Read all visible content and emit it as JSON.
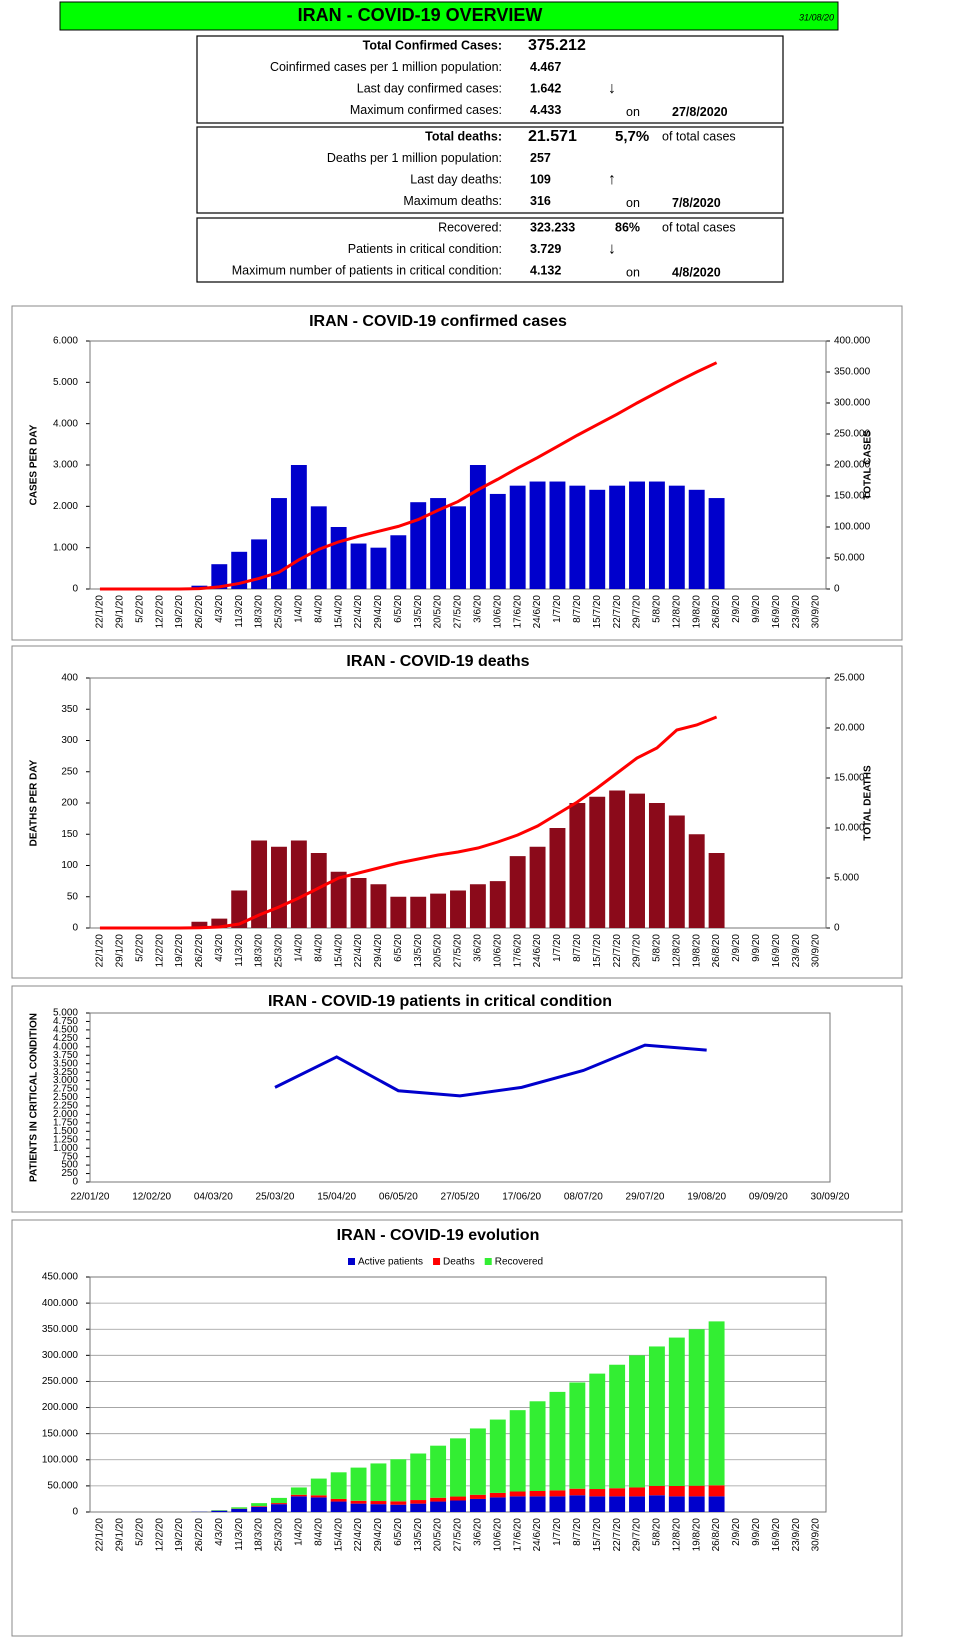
{
  "overview": {
    "title": "IRAN - COVID-19 OVERVIEW",
    "date": "31/08/20",
    "sections": [
      {
        "color": "#0000cc",
        "rows": [
          {
            "label": "Total Confirmed Cases:",
            "value": "375.212"
          },
          {
            "label": "Coinfirmed cases per 1 million population:",
            "value": "4.467"
          },
          {
            "label": "Last day confirmed cases:",
            "value": "1.642",
            "arrow": "↓",
            "arrow_color": "#008000"
          },
          {
            "label": "Maximum confirmed cases:",
            "value": "4.433",
            "on": "on",
            "date": "27/8/2020"
          }
        ]
      },
      {
        "color": "#ff0000",
        "rows": [
          {
            "label": "Total deaths:",
            "value": "21.571",
            "pct": "5,7%",
            "note": "of total cases"
          },
          {
            "label": "Deaths per 1 million population:",
            "value": "257"
          },
          {
            "label": "Last day deaths:",
            "value": "109",
            "arrow": "↑",
            "arrow_color": "#ff0000"
          },
          {
            "label": "Maximum deaths:",
            "value": "316",
            "on": "on",
            "date": "7/8/2020"
          }
        ]
      },
      {
        "color": "#008000",
        "rows": [
          {
            "label": "Recovered:",
            "value": "323.233",
            "pct": "86%",
            "note": "of total cases"
          },
          {
            "label": "Patients in critical condition:",
            "value": "3.729",
            "arrow": "↓",
            "arrow_color": "#008000"
          },
          {
            "label": "Maximum number of patients in critical condition:",
            "value": "4.132",
            "on": "on",
            "date": "4/8/2020"
          }
        ]
      }
    ]
  },
  "chart_data": [
    {
      "type": "bar",
      "title": "IRAN - COVID-19 confirmed cases",
      "ylabel": "CASES PER DAY",
      "y2label": "TOTAL  CASES",
      "categories": [
        "22/1/20",
        "29/1/20",
        "5/2/20",
        "12/2/20",
        "19/2/20",
        "26/2/20",
        "4/3/20",
        "11/3/20",
        "18/3/20",
        "25/3/20",
        "1/4/20",
        "8/4/20",
        "15/4/20",
        "22/4/20",
        "29/4/20",
        "6/5/20",
        "13/5/20",
        "20/5/20",
        "27/5/20",
        "3/6/20",
        "10/6/20",
        "17/6/20",
        "24/6/20",
        "1/7/20",
        "8/7/20",
        "15/7/20",
        "22/7/20",
        "29/7/20",
        "5/8/20",
        "12/8/20",
        "19/8/20",
        "26/8/20",
        "2/9/20",
        "9/9/20",
        "16/9/20",
        "23/9/20",
        "30/9/20"
      ],
      "series": [
        {
          "type": "bar",
          "color": "#0000cc",
          "values": [
            0,
            0,
            0,
            0,
            0,
            80,
            600,
            900,
            1200,
            2200,
            3000,
            2000,
            1500,
            1100,
            1000,
            1300,
            2100,
            2200,
            2000,
            3000,
            2300,
            2500,
            2600,
            2600,
            2500,
            2400,
            2500,
            2600,
            2600,
            2500,
            2400,
            2200,
            null,
            null,
            null,
            null,
            null
          ]
        },
        {
          "type": "line",
          "axis": "y2",
          "color": "#ff0000",
          "values": [
            0,
            0,
            0,
            0,
            0,
            600,
            3500,
            9000,
            17000,
            27000,
            47000,
            64000,
            76000,
            85000,
            93000,
            101000,
            112000,
            127000,
            141000,
            160000,
            177000,
            195000,
            212000,
            230000,
            248000,
            265000,
            282000,
            300000,
            317000,
            334000,
            350000,
            365000,
            null,
            null,
            null,
            null,
            null
          ]
        }
      ],
      "ylim": [
        0,
        6000
      ],
      "yticks": [
        0,
        {
          "value": 1000,
          "label": "1.000"
        },
        {
          "value": 2000,
          "label": "2.000"
        },
        {
          "value": 3000,
          "label": "3.000"
        },
        {
          "value": 4000,
          "label": "4.000"
        },
        {
          "value": 5000,
          "label": "5.000"
        },
        {
          "value": 6000,
          "label": "6.000"
        }
      ],
      "y2lim": [
        0,
        400000
      ],
      "y2ticks": [
        0,
        {
          "value": 50000,
          "label": "50.000"
        },
        {
          "value": 100000,
          "label": "100.000"
        },
        {
          "value": 150000,
          "label": "150.000"
        },
        {
          "value": 200000,
          "label": "200.000"
        },
        {
          "value": 250000,
          "label": "250.000"
        },
        {
          "value": 300000,
          "label": "300.000"
        },
        {
          "value": 350000,
          "label": "350.000"
        },
        {
          "value": 400000,
          "label": "400.000"
        }
      ],
      "grid": false
    },
    {
      "type": "bar",
      "title": "IRAN - COVID-19 deaths",
      "ylabel": "DEATHS PER DAY",
      "y2label": "TOTAL DEATHS",
      "categories": [
        "22/1/20",
        "29/1/20",
        "5/2/20",
        "12/2/20",
        "19/2/20",
        "26/2/20",
        "4/3/20",
        "11/3/20",
        "18/3/20",
        "25/3/20",
        "1/4/20",
        "8/4/20",
        "15/4/20",
        "22/4/20",
        "29/4/20",
        "6/5/20",
        "13/5/20",
        "20/5/20",
        "27/5/20",
        "3/6/20",
        "10/6/20",
        "17/6/20",
        "24/6/20",
        "1/7/20",
        "8/7/20",
        "15/7/20",
        "22/7/20",
        "29/7/20",
        "5/8/20",
        "12/8/20",
        "19/8/20",
        "26/8/20",
        "2/9/20",
        "9/9/20",
        "16/9/20",
        "23/9/20",
        "30/9/20"
      ],
      "series": [
        {
          "type": "bar",
          "color": "#8b0a1a",
          "values": [
            0,
            0,
            0,
            0,
            0,
            10,
            15,
            60,
            140,
            130,
            140,
            120,
            90,
            80,
            70,
            50,
            50,
            55,
            60,
            70,
            75,
            115,
            130,
            160,
            200,
            210,
            220,
            215,
            200,
            180,
            150,
            120,
            null,
            null,
            null,
            null,
            null
          ]
        },
        {
          "type": "line",
          "axis": "y2",
          "color": "#ff0000",
          "values": [
            0,
            0,
            0,
            0,
            0,
            20,
            100,
            400,
            1300,
            2100,
            3000,
            4000,
            5000,
            5500,
            6000,
            6500,
            6900,
            7300,
            7600,
            8000,
            8600,
            9300,
            10200,
            11400,
            12600,
            14000,
            15500,
            17000,
            18000,
            19800,
            20300,
            21100,
            null,
            null,
            null,
            null,
            null
          ]
        }
      ],
      "ylim": [
        0,
        400
      ],
      "yticks": [
        0,
        50,
        100,
        150,
        200,
        250,
        300,
        350,
        400
      ],
      "y2lim": [
        0,
        25000
      ],
      "y2ticks": [
        0,
        {
          "value": 5000,
          "label": "5.000"
        },
        {
          "value": 10000,
          "label": "10.000"
        },
        {
          "value": 15000,
          "label": "15.000"
        },
        {
          "value": 20000,
          "label": "20.000"
        },
        {
          "value": 25000,
          "label": "25.000"
        }
      ],
      "grid": false
    },
    {
      "type": "line",
      "title": "IRAN - COVID-19 patients in critical condition",
      "ylabel": "PATIENTS IN CRITICAL CONDITION",
      "categories": [
        "22/01/20",
        "12/02/20",
        "04/03/20",
        "25/03/20",
        "15/04/20",
        "06/05/20",
        "27/05/20",
        "17/06/20",
        "08/07/20",
        "29/07/20",
        "19/08/20",
        "09/09/20",
        "30/09/20"
      ],
      "series": [
        {
          "color": "#0000cc",
          "values": [
            null,
            null,
            null,
            2800,
            3700,
            2700,
            2550,
            2800,
            3300,
            4050,
            3900,
            null,
            null
          ]
        }
      ],
      "ylim": [
        0,
        5000
      ],
      "yticks": [
        0,
        250,
        500,
        750,
        {
          "value": 1000,
          "label": "1.000"
        },
        {
          "value": 1250,
          "label": "1.250"
        },
        {
          "value": 1500,
          "label": "1.500"
        },
        {
          "value": 1750,
          "label": "1.750"
        },
        {
          "value": 2000,
          "label": "2.000"
        },
        {
          "value": 2250,
          "label": "2.250"
        },
        {
          "value": 2500,
          "label": "2.500"
        },
        {
          "value": 2750,
          "label": "2.750"
        },
        {
          "value": 3000,
          "label": "3.000"
        },
        {
          "value": 3250,
          "label": "3.250"
        },
        {
          "value": 3500,
          "label": "3.500"
        },
        {
          "value": 3750,
          "label": "3.750"
        },
        {
          "value": 4000,
          "label": "4.000"
        },
        {
          "value": 4250,
          "label": "4.250"
        },
        {
          "value": 4500,
          "label": "4.500"
        },
        {
          "value": 4750,
          "label": "4.750"
        },
        {
          "value": 5000,
          "label": "5.000"
        }
      ],
      "grid": false
    },
    {
      "type": "stacked_bar",
      "title": "IRAN - COVID-19 evolution",
      "legend": "top",
      "categories": [
        "22/1/20",
        "29/1/20",
        "5/2/20",
        "12/2/20",
        "19/2/20",
        "26/2/20",
        "4/3/20",
        "11/3/20",
        "18/3/20",
        "25/3/20",
        "1/4/20",
        "8/4/20",
        "15/4/20",
        "22/4/20",
        "29/4/20",
        "6/5/20",
        "13/5/20",
        "20/5/20",
        "27/5/20",
        "3/6/20",
        "10/6/20",
        "17/6/20",
        "24/6/20",
        "1/7/20",
        "8/7/20",
        "15/7/20",
        "22/7/20",
        "29/7/20",
        "5/8/20",
        "12/8/20",
        "19/8/20",
        "26/8/20",
        "2/9/20",
        "9/9/20",
        "16/9/20",
        "23/9/20",
        "30/9/20"
      ],
      "series": [
        {
          "name": "Active patients",
          "color": "#0000cc",
          "values": [
            0,
            0,
            0,
            0,
            0,
            500,
            2500,
            6000,
            10000,
            15000,
            30000,
            28000,
            20000,
            16000,
            15000,
            14000,
            16000,
            20000,
            22000,
            25000,
            28000,
            30000,
            30000,
            30000,
            32000,
            30000,
            30000,
            30000,
            32000,
            30000,
            30000,
            30000,
            null,
            null,
            null,
            null,
            null
          ]
        },
        {
          "name": "Deaths",
          "color": "#ff0000",
          "values": [
            0,
            0,
            0,
            0,
            0,
            20,
            100,
            400,
            1300,
            2100,
            3000,
            4000,
            5000,
            5500,
            6000,
            6500,
            6900,
            7300,
            7600,
            8000,
            8600,
            9300,
            10200,
            11400,
            12600,
            14000,
            15500,
            17000,
            18000,
            19800,
            20300,
            21100,
            null,
            null,
            null,
            null,
            null
          ]
        },
        {
          "name": "Recovered",
          "color": "#33ee33",
          "values": [
            0,
            0,
            0,
            0,
            0,
            80,
            900,
            2600,
            5700,
            9900,
            14000,
            32000,
            51000,
            63500,
            72000,
            80500,
            89100,
            99700,
            111400,
            127000,
            140400,
            155700,
            171800,
            188600,
            203400,
            221000,
            236500,
            253000,
            267000,
            284200,
            299700,
            313900,
            null,
            null,
            null,
            null,
            null
          ]
        }
      ],
      "ylim": [
        0,
        450000
      ],
      "yticks": [
        0,
        {
          "value": 50000,
          "label": "50.000"
        },
        {
          "value": 100000,
          "label": "100.000"
        },
        {
          "value": 150000,
          "label": "150.000"
        },
        {
          "value": 200000,
          "label": "200.000"
        },
        {
          "value": 250000,
          "label": "250.000"
        },
        {
          "value": 300000,
          "label": "300.000"
        },
        {
          "value": 350000,
          "label": "350.000"
        },
        {
          "value": 400000,
          "label": "400.000"
        },
        {
          "value": 450000,
          "label": "450.000"
        }
      ],
      "grid": true
    }
  ]
}
